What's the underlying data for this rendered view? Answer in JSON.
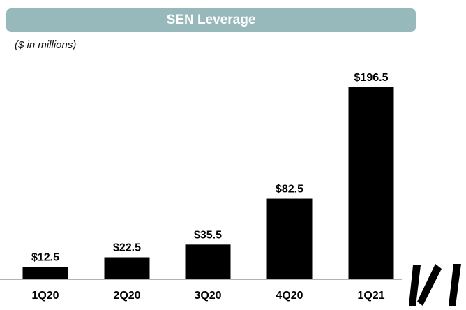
{
  "header": {
    "title": "SEN Leverage",
    "subtitle": "($ in millions)"
  },
  "colors": {
    "banner": "#98b9bb",
    "bar": "#000000",
    "axis": "#9a9a9a",
    "text": "#000000"
  },
  "logo": {
    "icon": "brand-logo-icon"
  },
  "chart_data": {
    "type": "bar",
    "title": "SEN Leverage",
    "subtitle": "($ in millions)",
    "categories": [
      "1Q20",
      "2Q20",
      "3Q20",
      "4Q20",
      "1Q21"
    ],
    "values": [
      12.5,
      22.5,
      35.5,
      82.5,
      196.5
    ],
    "data_labels": [
      "$12.5",
      "$22.5",
      "$35.5",
      "$82.5",
      "$196.5"
    ],
    "xlabel": "",
    "ylabel": "",
    "ylim": [
      0,
      196.5
    ],
    "grid": false,
    "legend": "none"
  }
}
